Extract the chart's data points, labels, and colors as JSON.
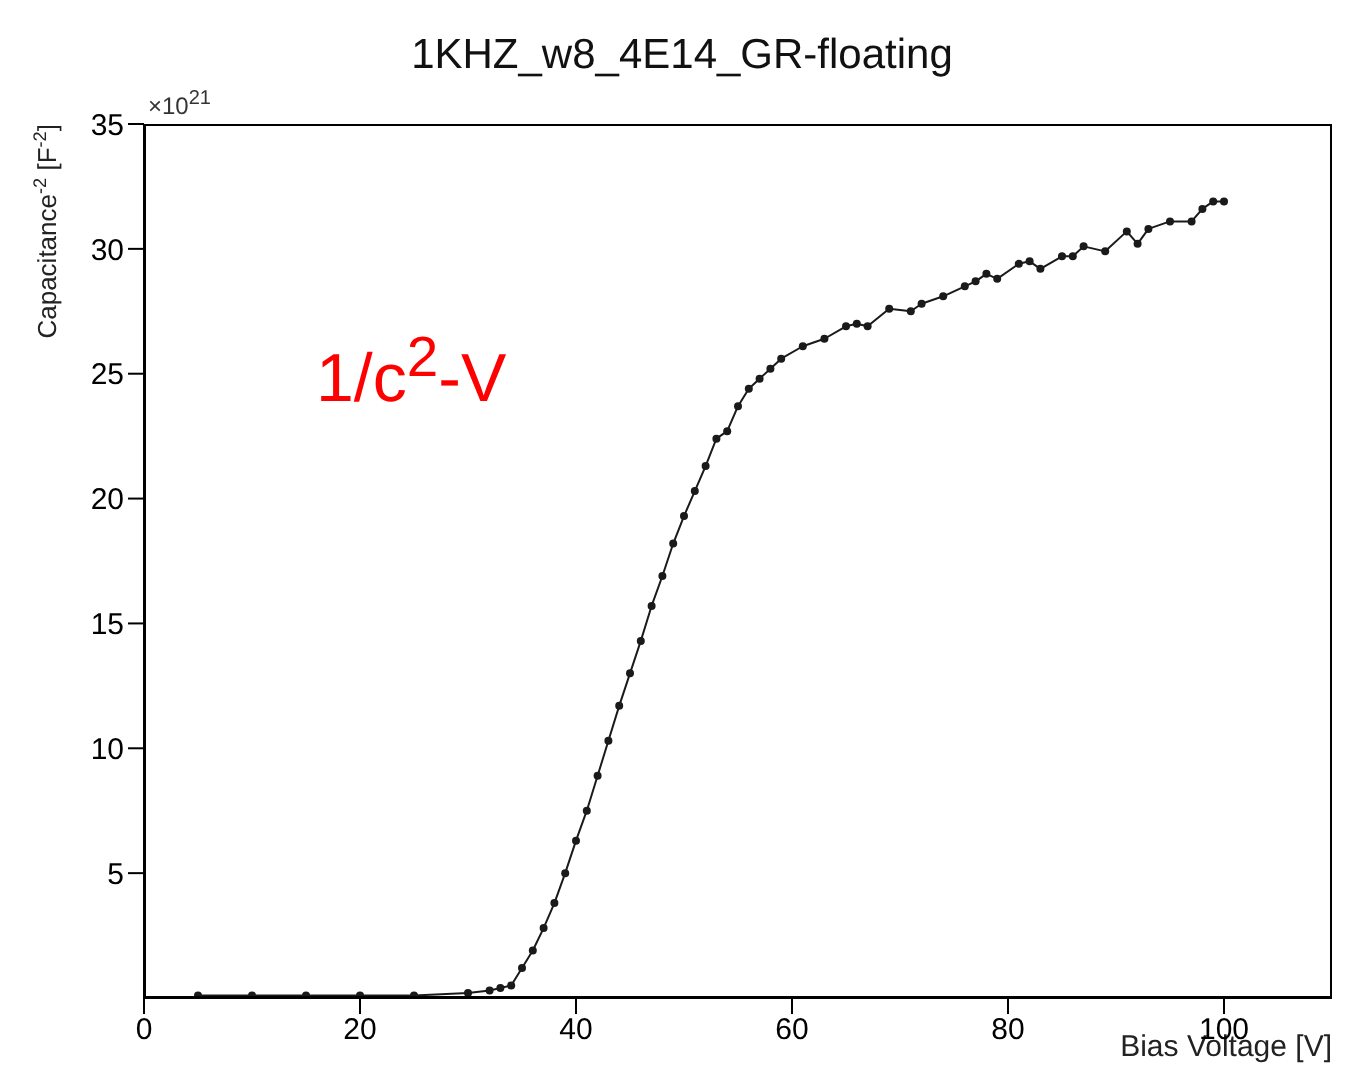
{
  "chart_data": {
    "type": "line",
    "title": "1KHZ_w8_4E14_GR-floating",
    "xlabel": "Bias Voltage [V]",
    "ylabel": "Capacitance$^{-2}$ [F$^{-2}$]",
    "annotations": [
      "×10$^{21}$",
      "1/c$^{2}$-V"
    ],
    "series": [
      {
        "color": "#1a1a1a",
        "x": [
          5,
          10,
          15,
          20,
          25,
          30,
          32,
          33,
          34,
          35,
          36,
          37,
          38,
          39,
          40,
          41,
          42,
          43,
          44,
          45,
          46,
          47,
          48,
          49,
          50,
          51,
          52,
          53,
          54,
          55,
          56,
          57,
          58,
          59,
          61,
          63,
          65,
          66,
          67,
          69,
          71,
          72,
          74,
          76,
          77,
          78,
          79,
          81,
          82,
          83,
          85,
          86,
          87,
          89,
          91,
          92,
          93,
          95,
          97,
          98,
          99,
          100
        ],
        "values": [
          0.1,
          0.1,
          0.1,
          0.1,
          0.1,
          0.2,
          0.3,
          0.4,
          0.5,
          1.2,
          1.9,
          2.8,
          3.8,
          5.0,
          6.3,
          7.5,
          8.9,
          10.3,
          11.7,
          13.0,
          14.3,
          15.7,
          16.9,
          18.2,
          19.3,
          20.3,
          21.3,
          22.4,
          22.7,
          23.7,
          24.4,
          24.8,
          25.2,
          25.6,
          26.1,
          26.4,
          26.9,
          27.0,
          26.9,
          27.6,
          27.5,
          27.8,
          28.1,
          28.5,
          28.7,
          29.0,
          28.8,
          29.4,
          29.5,
          29.2,
          29.7,
          29.7,
          30.1,
          29.9,
          30.7,
          30.2,
          30.8,
          31.1,
          31.1,
          31.6,
          31.9,
          31.9
        ]
      }
    ],
    "xlim": [
      0,
      110
    ],
    "xticks": [
      0,
      20,
      40,
      60,
      80,
      100
    ],
    "ylim": [
      0,
      35
    ],
    "yticks": [
      5,
      10,
      15,
      20,
      25,
      30,
      35
    ],
    "grid": false,
    "legend": false,
    "marker": "circle",
    "line_style": "solid"
  }
}
